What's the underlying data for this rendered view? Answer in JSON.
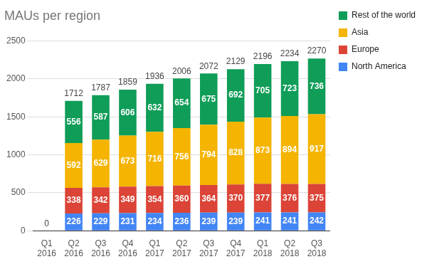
{
  "chart_data": {
    "type": "bar",
    "title": "MAUs per region",
    "categories": [
      "Q1 2016",
      "Q2 2016",
      "Q3 2016",
      "Q4 2016",
      "Q1 2017",
      "Q2 2017",
      "Q3 2017",
      "Q4 2017",
      "Q1 2018",
      "Q2 2018",
      "Q3 2018"
    ],
    "series": [
      {
        "name": "North America",
        "color": "#4285f4",
        "values": [
          null,
          226,
          229,
          231,
          234,
          236,
          239,
          239,
          241,
          241,
          242
        ]
      },
      {
        "name": "Europe",
        "color": "#db4437",
        "values": [
          null,
          338,
          342,
          349,
          354,
          360,
          364,
          370,
          377,
          376,
          375
        ]
      },
      {
        "name": "Asia",
        "color": "#f4b400",
        "values": [
          null,
          592,
          629,
          673,
          716,
          756,
          794,
          828,
          873,
          894,
          917
        ]
      },
      {
        "name": "Rest of the world",
        "color": "#0f9d58",
        "values": [
          null,
          556,
          587,
          606,
          632,
          654,
          675,
          692,
          705,
          723,
          736
        ]
      }
    ],
    "totals": [
      0,
      1712,
      1787,
      1859,
      1936,
      2006,
      2072,
      2129,
      2196,
      2234,
      2270
    ],
    "ylim": [
      0,
      2500
    ],
    "yticks": [
      0,
      500,
      1000,
      1500,
      2000,
      2500
    ],
    "grid": true,
    "stacked": true,
    "data_labels": true,
    "legend": "right"
  }
}
